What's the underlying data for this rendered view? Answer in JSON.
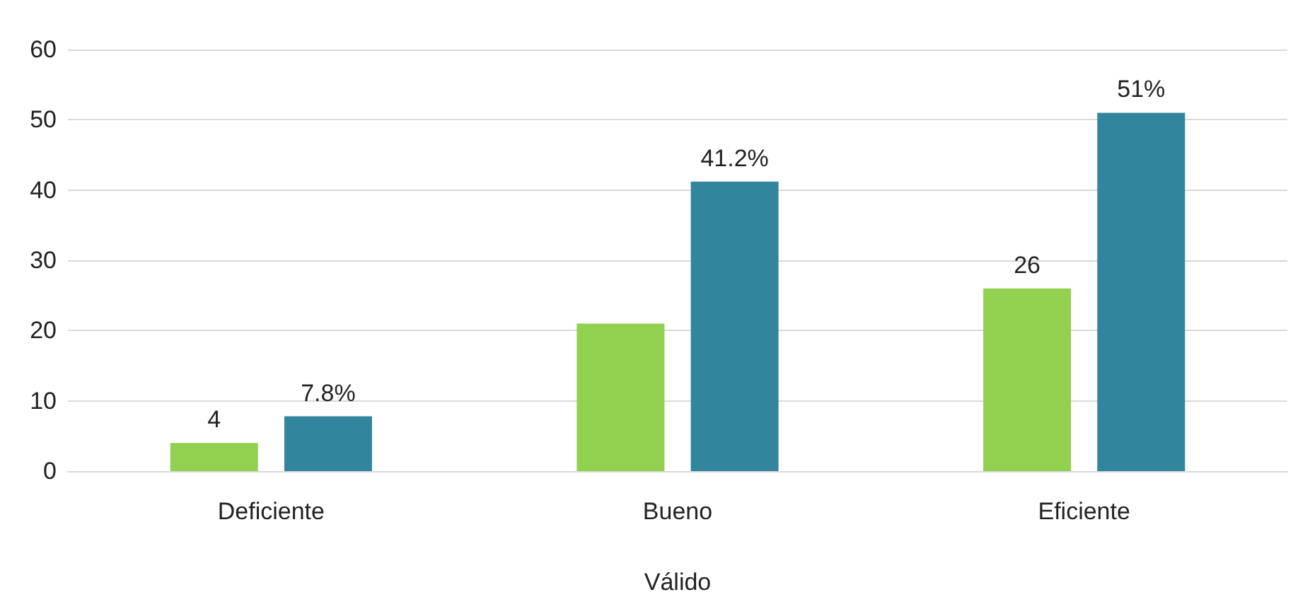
{
  "chart_data": {
    "type": "bar",
    "xlabel": "Válido",
    "categories": [
      "Deficiente",
      "Bueno",
      "Eficiente"
    ],
    "series": [
      {
        "color": "#92d050",
        "values": [
          4,
          21,
          26
        ],
        "value_labels": [
          "4",
          null,
          "26"
        ]
      },
      {
        "color": "#31859c",
        "values": [
          7.8,
          41.2,
          51
        ],
        "value_labels": [
          "7.8%",
          "41.2%",
          "51%"
        ]
      }
    ],
    "ylim": [
      0,
      60
    ],
    "yticks": [
      0,
      10,
      20,
      30,
      40,
      50,
      60
    ],
    "grid": "y"
  }
}
